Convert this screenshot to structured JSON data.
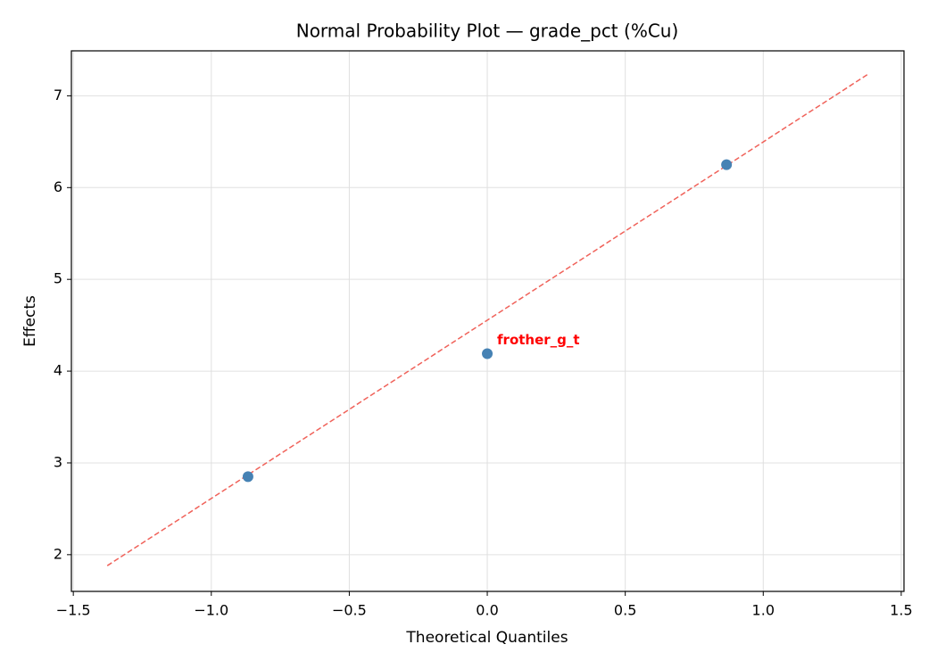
{
  "chart_data": {
    "type": "scatter",
    "title": "Normal Probability Plot — grade_pct (%Cu)",
    "xlabel": "Theoretical Quantiles",
    "ylabel": "Effects",
    "x": [
      -0.867,
      0,
      0.867
    ],
    "values": [
      2.85,
      4.19,
      6.25
    ],
    "color": "#4682b4",
    "reference_line": {
      "x": [
        -1.377,
        1.377
      ],
      "values": [
        1.88,
        7.23
      ],
      "color": "#f0625a",
      "dashed": true
    },
    "annotations": [
      {
        "text": "frother_g_t",
        "x": 0,
        "y": 4.19,
        "color": "#ff0000"
      }
    ],
    "xlim": [
      -1.507,
      1.51
    ],
    "ylim": [
      1.6,
      7.49
    ],
    "xticks": [
      {
        "value": -1.5,
        "label": "−1.5"
      },
      {
        "value": -1,
        "label": "−1.0"
      },
      {
        "value": -0.5,
        "label": "−0.5"
      },
      {
        "value": 0,
        "label": "0.0"
      },
      0.5,
      {
        "value": 1,
        "label": "1.0"
      },
      1.5
    ],
    "yticks": [
      2,
      3,
      4,
      5,
      6,
      7
    ],
    "grid": true
  }
}
